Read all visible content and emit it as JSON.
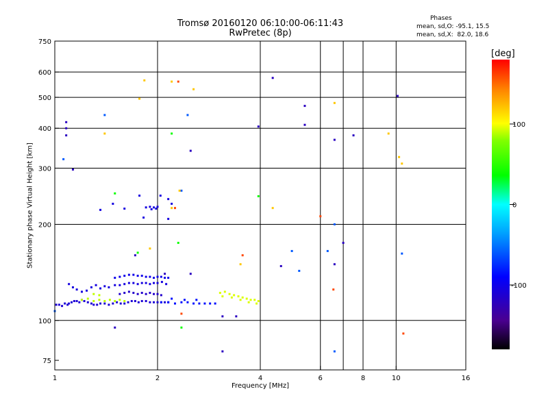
{
  "title_line1": "Tromsø 20160120 06:10:00-06:11:43",
  "title_line2": "RwPretec (8p)",
  "stats": {
    "title": "Phases",
    "line1": "mean, sd,O: -95.1, 15.5",
    "line2": "mean, sd,X:  82.0, 18.6"
  },
  "colorbar": {
    "label": "[deg]",
    "ticks": [
      "100",
      "0",
      "-100"
    ],
    "range": [
      -180,
      180
    ]
  },
  "chart_data": {
    "type": "scatter",
    "xlabel": "Frequency [MHz]",
    "ylabel": "Stationary phase Virtual Height [km]",
    "xscale": "log",
    "yscale": "log",
    "xlim": [
      1,
      16
    ],
    "ylim": [
      70,
      750
    ],
    "xticks": [
      1,
      2,
      4,
      6,
      8,
      10,
      16
    ],
    "xtick_labels": [
      "1",
      "2",
      "4",
      "6",
      "8",
      "10",
      "16"
    ],
    "yticks": [
      75,
      100,
      200,
      300,
      400,
      500,
      600,
      750
    ],
    "ytick_labels": [
      "75",
      "100",
      "200",
      "300",
      "400",
      "500",
      "600",
      "750"
    ],
    "grid": true,
    "grid_x": [
      2,
      4,
      6,
      7,
      8,
      10
    ],
    "grid_y": [
      100,
      200,
      300,
      400,
      500,
      600
    ],
    "color_quantity": "phase [deg]",
    "clusters": [
      {
        "phase": -110,
        "points": [
          [
            1.01,
            112
          ],
          [
            1.03,
            112
          ],
          [
            1.05,
            111
          ],
          [
            1.07,
            113
          ],
          [
            1.09,
            112
          ],
          [
            1.1,
            113
          ],
          [
            1.12,
            114
          ],
          [
            1.14,
            115
          ],
          [
            1.16,
            115
          ],
          [
            1.18,
            114
          ],
          [
            1.2,
            116
          ],
          [
            1.22,
            115
          ],
          [
            1.25,
            114
          ],
          [
            1.28,
            113
          ],
          [
            1.3,
            112
          ],
          [
            1.33,
            112
          ],
          [
            1.36,
            113
          ],
          [
            1.4,
            113
          ],
          [
            1.44,
            112
          ],
          [
            1.48,
            113
          ],
          [
            1.52,
            114
          ],
          [
            1.56,
            113
          ],
          [
            1.6,
            113
          ],
          [
            1.64,
            114
          ],
          [
            1.68,
            115
          ],
          [
            1.72,
            115
          ],
          [
            1.76,
            114
          ],
          [
            1.8,
            115
          ],
          [
            1.85,
            115
          ],
          [
            1.9,
            114
          ],
          [
            1.95,
            114
          ],
          [
            2.0,
            114
          ],
          [
            2.05,
            114
          ],
          [
            2.1,
            114
          ],
          [
            2.15,
            114
          ]
        ]
      },
      {
        "phase": -105,
        "points": [
          [
            1.1,
            130
          ],
          [
            1.13,
            127
          ],
          [
            1.16,
            125
          ],
          [
            1.2,
            123
          ],
          [
            1.24,
            124
          ],
          [
            1.28,
            127
          ],
          [
            1.32,
            129
          ],
          [
            1.36,
            126
          ],
          [
            1.4,
            128
          ],
          [
            1.44,
            127
          ],
          [
            1.5,
            129
          ],
          [
            1.55,
            129
          ],
          [
            1.6,
            130
          ],
          [
            1.65,
            131
          ],
          [
            1.7,
            131
          ],
          [
            1.75,
            130
          ],
          [
            1.8,
            131
          ],
          [
            1.85,
            131
          ],
          [
            1.9,
            130
          ],
          [
            1.95,
            131
          ],
          [
            2.0,
            131
          ],
          [
            2.06,
            132
          ],
          [
            2.12,
            130
          ]
        ]
      },
      {
        "phase": -100,
        "points": [
          [
            1.5,
            136
          ],
          [
            1.55,
            137
          ],
          [
            1.6,
            138
          ],
          [
            1.65,
            139
          ],
          [
            1.7,
            139
          ],
          [
            1.75,
            138
          ],
          [
            1.8,
            138
          ],
          [
            1.85,
            137
          ],
          [
            1.9,
            137
          ],
          [
            1.95,
            136
          ],
          [
            2.0,
            137
          ],
          [
            2.05,
            137
          ],
          [
            2.1,
            136
          ],
          [
            2.15,
            136
          ]
        ]
      },
      {
        "phase": -115,
        "points": [
          [
            1.55,
            121
          ],
          [
            1.6,
            122
          ],
          [
            1.65,
            123
          ],
          [
            1.7,
            122
          ],
          [
            1.75,
            121
          ],
          [
            1.8,
            122
          ],
          [
            1.85,
            121
          ],
          [
            1.9,
            122
          ],
          [
            1.95,
            121
          ],
          [
            2.0,
            121
          ],
          [
            2.05,
            120
          ]
        ]
      },
      {
        "phase": -85,
        "points": [
          [
            2.05,
            114
          ],
          [
            2.15,
            114
          ],
          [
            2.25,
            113
          ],
          [
            2.35,
            114
          ],
          [
            2.45,
            114
          ],
          [
            2.55,
            113
          ],
          [
            2.65,
            113
          ],
          [
            2.75,
            113
          ],
          [
            2.85,
            113
          ],
          [
            2.95,
            113
          ],
          [
            2.2,
            117
          ],
          [
            2.4,
            116
          ],
          [
            2.6,
            116
          ]
        ]
      },
      {
        "phase": 95,
        "points": [
          [
            3.05,
            122
          ],
          [
            3.15,
            123
          ],
          [
            3.25,
            121
          ],
          [
            3.35,
            120
          ],
          [
            3.45,
            119
          ],
          [
            3.55,
            118
          ],
          [
            3.65,
            117
          ],
          [
            3.75,
            116
          ],
          [
            3.85,
            116
          ],
          [
            3.95,
            115
          ],
          [
            3.1,
            119
          ],
          [
            3.3,
            118
          ],
          [
            3.5,
            116
          ],
          [
            3.7,
            114
          ],
          [
            3.9,
            113
          ]
        ]
      },
      {
        "phase": 90,
        "points": [
          [
            1.2,
            116
          ],
          [
            1.25,
            117
          ],
          [
            1.3,
            115
          ],
          [
            1.35,
            116
          ],
          [
            1.4,
            115
          ],
          [
            1.45,
            116
          ],
          [
            1.5,
            115
          ],
          [
            1.55,
            116
          ],
          [
            1.6,
            115
          ],
          [
            1.3,
            121
          ],
          [
            1.35,
            120
          ]
        ]
      },
      {
        "phase": -105,
        "points": [
          [
            1.85,
            226
          ],
          [
            1.9,
            227
          ],
          [
            1.95,
            226
          ],
          [
            2.0,
            227
          ],
          [
            1.92,
            223
          ],
          [
            1.98,
            224
          ],
          [
            1.36,
            222
          ],
          [
            1.6,
            224
          ],
          [
            1.48,
            232
          ],
          [
            1.77,
            246
          ],
          [
            2.04,
            246
          ],
          [
            1.82,
            210
          ],
          [
            2.2,
            232
          ],
          [
            2.15,
            240
          ],
          [
            2.15,
            208
          ]
        ]
      },
      {
        "phase": -120,
        "points": [
          [
            1.08,
            418
          ],
          [
            1.08,
            400
          ],
          [
            1.08,
            380
          ],
          [
            1.13,
            297
          ],
          [
            2.5,
            340
          ],
          [
            4.35,
            575
          ],
          [
            5.4,
            470
          ],
          [
            5.4,
            410
          ],
          [
            6.6,
            368
          ],
          [
            7.5,
            380
          ],
          [
            10.1,
            505
          ],
          [
            3.95,
            405
          ],
          [
            1.72,
            160
          ],
          [
            4.6,
            148
          ],
          [
            6.6,
            150
          ],
          [
            7.0,
            175
          ],
          [
            2.1,
            140
          ],
          [
            2.5,
            140
          ],
          [
            3.1,
            103
          ],
          [
            3.4,
            103
          ],
          [
            1.5,
            95
          ],
          [
            3.1,
            80
          ]
        ]
      },
      {
        "phase": -60,
        "points": [
          [
            1.4,
            440
          ],
          [
            2.45,
            440
          ],
          [
            2.35,
            255
          ],
          [
            4.95,
            165
          ],
          [
            6.3,
            165
          ],
          [
            6.6,
            200
          ],
          [
            5.2,
            143
          ],
          [
            1.06,
            320
          ],
          [
            1.0,
            107
          ],
          [
            10.4,
            162
          ],
          [
            6.6,
            80
          ]
        ]
      },
      {
        "phase": 120,
        "points": [
          [
            1.83,
            565
          ],
          [
            2.2,
            560
          ],
          [
            2.32,
            255
          ],
          [
            2.2,
            225
          ],
          [
            6.6,
            480
          ],
          [
            9.5,
            385
          ],
          [
            10.2,
            325
          ],
          [
            10.4,
            310
          ],
          [
            3.5,
            150
          ],
          [
            1.77,
            495
          ],
          [
            4.35,
            225
          ],
          [
            1.9,
            168
          ],
          [
            1.4,
            385
          ],
          [
            2.55,
            530
          ]
        ]
      },
      {
        "phase": 160,
        "points": [
          [
            2.3,
            560
          ],
          [
            6.55,
            125
          ],
          [
            3.55,
            160
          ],
          [
            2.25,
            225
          ],
          [
            6.0,
            212
          ],
          [
            2.35,
            105
          ],
          [
            10.5,
            91
          ]
        ]
      },
      {
        "phase": 40,
        "points": [
          [
            2.2,
            385
          ],
          [
            2.3,
            175
          ],
          [
            2.35,
            95
          ],
          [
            1.75,
            163
          ],
          [
            1.5,
            250
          ],
          [
            3.95,
            245
          ]
        ]
      }
    ]
  }
}
